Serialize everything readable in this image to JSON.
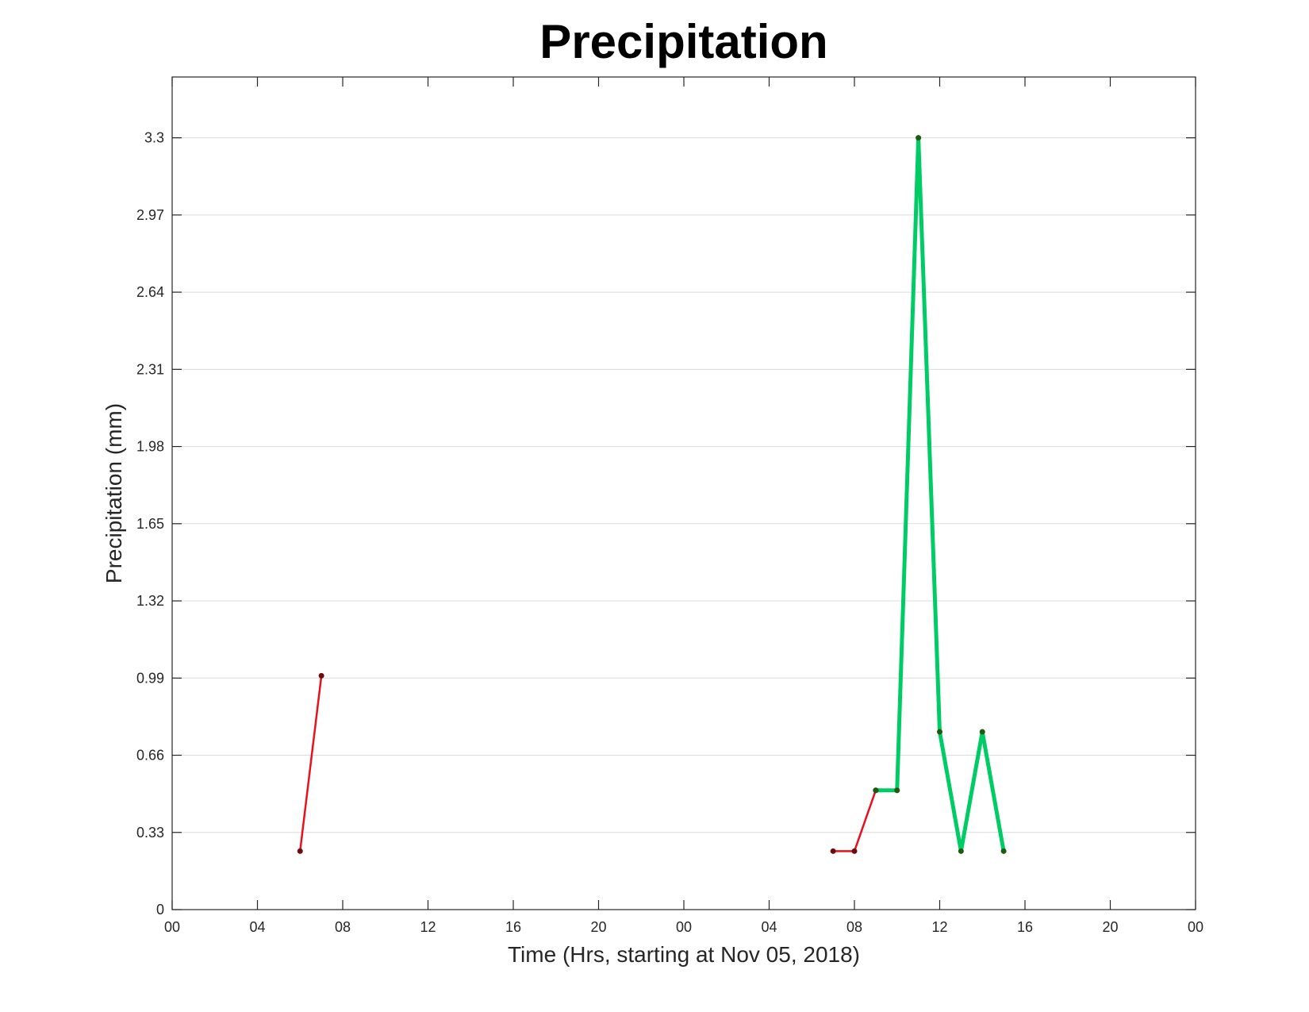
{
  "chart_data": {
    "type": "line",
    "title": "Precipitation",
    "xlabel": "Time (Hrs, starting at Nov 05, 2018)",
    "ylabel": "Precipitation (mm)",
    "x_range_hours": [
      0,
      48
    ],
    "ylim": [
      0,
      3.56
    ],
    "x_tick_hours": [
      0,
      4,
      8,
      12,
      16,
      20,
      24,
      28,
      32,
      36,
      40,
      44,
      48
    ],
    "x_tick_labels": [
      "00",
      "04",
      "08",
      "12",
      "16",
      "20",
      "00",
      "04",
      "08",
      "12",
      "16",
      "20",
      "00"
    ],
    "y_ticks": [
      0,
      0.33,
      0.66,
      0.99,
      1.32,
      1.65,
      1.98,
      2.31,
      2.64,
      2.97,
      3.3
    ],
    "y_tick_labels": [
      "0",
      "0.33",
      "0.66",
      "0.99",
      "1.32",
      "1.65",
      "1.98",
      "2.31",
      "2.64",
      "2.97",
      "3.3"
    ],
    "grid": "horizontal",
    "series": [
      {
        "color": "#e8101c",
        "marker_color": "#6b0d10",
        "points": [
          [
            6,
            0.25
          ],
          [
            7,
            1.0
          ]
        ]
      },
      {
        "color": "#e8101c",
        "marker_color": "#6b0d10",
        "points": [
          [
            31,
            0.25
          ],
          [
            32,
            0.25
          ],
          [
            33,
            0.51
          ]
        ]
      },
      {
        "color": "#00cc66",
        "marker_color": "#1e5a10",
        "points": [
          [
            33,
            0.51
          ],
          [
            34,
            0.51
          ],
          [
            35,
            3.3
          ],
          [
            36,
            0.76
          ],
          [
            37,
            0.25
          ],
          [
            38,
            0.76
          ],
          [
            39,
            0.25
          ]
        ]
      }
    ]
  }
}
